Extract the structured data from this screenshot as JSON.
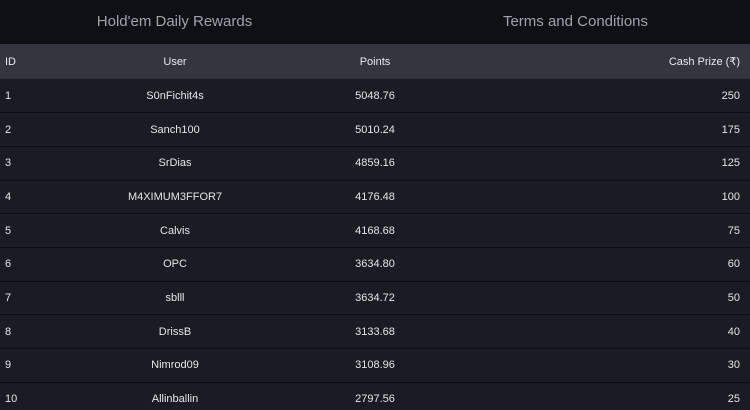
{
  "tabs": [
    {
      "label": "Hold'em Daily Rewards"
    },
    {
      "label": "Terms and Conditions"
    }
  ],
  "table": {
    "headers": {
      "id": "ID",
      "user": "User",
      "points": "Points",
      "cash": "Cash Prize (₹)"
    },
    "rows": [
      {
        "id": "1",
        "user": "S0nFichit4s",
        "points": "5048.76",
        "cash": "250"
      },
      {
        "id": "2",
        "user": "Sanch100",
        "points": "5010.24",
        "cash": "175"
      },
      {
        "id": "3",
        "user": "SrDias",
        "points": "4859.16",
        "cash": "125"
      },
      {
        "id": "4",
        "user": "M4XIMUM3FFOR7",
        "points": "4176.48",
        "cash": "100"
      },
      {
        "id": "5",
        "user": "Calvis",
        "points": "4168.68",
        "cash": "75"
      },
      {
        "id": "6",
        "user": "OPC",
        "points": "3634.80",
        "cash": "60"
      },
      {
        "id": "7",
        "user": "sblll",
        "points": "3634.72",
        "cash": "50"
      },
      {
        "id": "8",
        "user": "DrissB",
        "points": "3133.68",
        "cash": "40"
      },
      {
        "id": "9",
        "user": "Nimrod09",
        "points": "3108.96",
        "cash": "30"
      },
      {
        "id": "10",
        "user": "Allinballin",
        "points": "2797.56",
        "cash": "25"
      }
    ]
  }
}
